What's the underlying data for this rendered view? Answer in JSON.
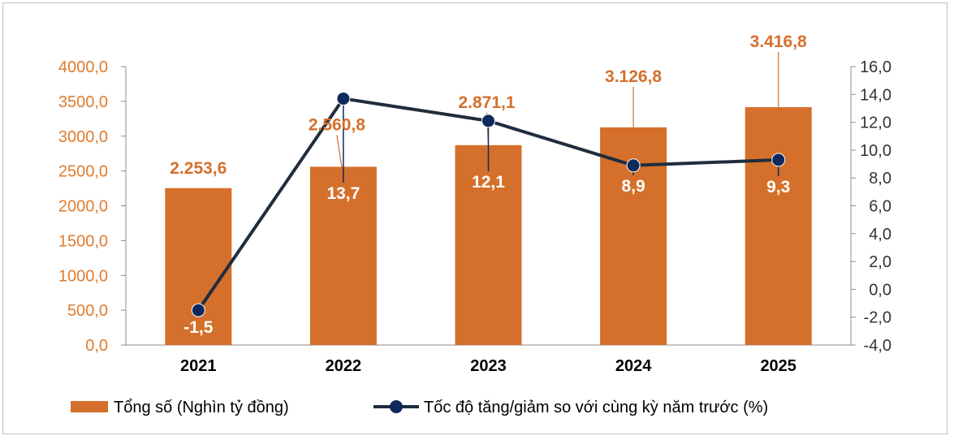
{
  "chart_data": {
    "type": "bar+line",
    "categories": [
      "2021",
      "2022",
      "2023",
      "2024",
      "2025"
    ],
    "series": [
      {
        "name": "Tổng số (Nghìn tỷ đồng)",
        "type": "bar",
        "axis": "left",
        "values": [
          2253.6,
          2560.8,
          2871.1,
          3126.8,
          3416.8
        ],
        "labels": [
          "2.253,6",
          "2.560,8",
          "2.871,1",
          "3.126,8",
          "3.416,8"
        ],
        "color": "#D4702B"
      },
      {
        "name": "Tốc độ tăng/giảm so với cùng kỳ năm trước (%)",
        "type": "line",
        "axis": "right",
        "values": [
          -1.5,
          13.7,
          12.1,
          8.9,
          9.3
        ],
        "labels": [
          "-1,5",
          "13,7",
          "12,1",
          "8,9",
          "9,3"
        ],
        "color": "#1F2D3D",
        "marker_color": "#0E2A5C"
      }
    ],
    "left_axis": {
      "ylim": [
        0,
        4000
      ],
      "ticks": [
        "0,0",
        "500,0",
        "1000,0",
        "1500,0",
        "2000,0",
        "2500,0",
        "3000,0",
        "3500,0",
        "4000,0"
      ],
      "color": "#E07B2E"
    },
    "right_axis": {
      "ylim": [
        -4,
        16
      ],
      "ticks": [
        "-4,0",
        "-2,0",
        "0,0",
        "2,0",
        "4,0",
        "6,0",
        "8,0",
        "10,0",
        "12,0",
        "14,0",
        "16,0"
      ]
    },
    "grid": false,
    "legend_position": "bottom"
  }
}
